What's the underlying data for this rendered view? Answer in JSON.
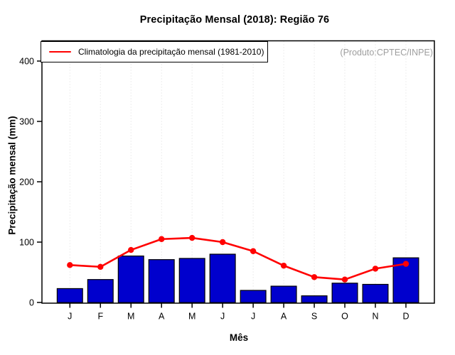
{
  "chart_data": {
    "type": "bar",
    "title": "Precipitação Mensal (2018): Região 76",
    "xlabel": "Mês",
    "ylabel": "Precipitação mensal (mm)",
    "categories": [
      "J",
      "F",
      "M",
      "A",
      "M",
      "J",
      "J",
      "A",
      "S",
      "O",
      "N",
      "D"
    ],
    "series": [
      {
        "name": "Precipitação mensal 2018",
        "kind": "bar",
        "color": "#0000cd",
        "values": [
          23,
          38,
          77,
          71,
          73,
          80,
          20,
          27,
          11,
          32,
          30,
          74
        ]
      },
      {
        "name": "Climatologia da precipitação mensal (1981-2010)",
        "kind": "line",
        "color": "#ff0000",
        "values": [
          62,
          59,
          87,
          105,
          107,
          100,
          85,
          61,
          42,
          38,
          56,
          64
        ]
      }
    ],
    "yticks": [
      0,
      100,
      200,
      300,
      400
    ],
    "ylim": [
      0,
      434
    ],
    "grid": "vertical-dotted",
    "legend": {
      "label": "Climatologia da precipitação mensal (1981-2010)",
      "position": "top-left"
    },
    "annotation": "(Produto:CPTEC/INPE)",
    "colors": {
      "bar": "#0000cd",
      "line": "#ff0000",
      "grid": "#dcdcdc",
      "axis": "#000000",
      "annotation": "#9e9e9e",
      "background": "#ffffff"
    }
  }
}
